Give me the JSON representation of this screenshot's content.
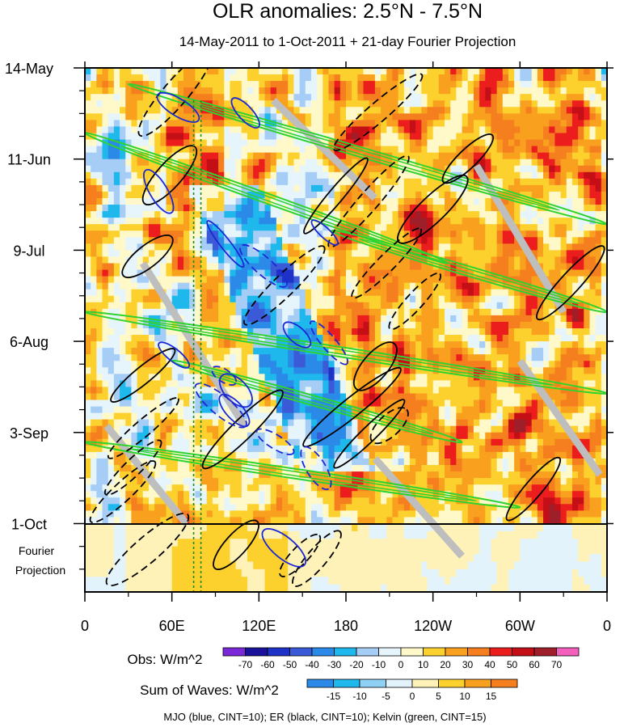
{
  "chart_data": {
    "type": "heatmap",
    "title": "OLR anomalies: 2.5°N - 7.5°N",
    "subtitle": "14-May-2011 to 1-Oct-2011 + 21-day Fourier Projection",
    "x_axis": {
      "labels": [
        "0",
        "60E",
        "120E",
        "180",
        "120W",
        "60W",
        "0"
      ],
      "longitude_deg_east": [
        0,
        60,
        120,
        180,
        240,
        300,
        360
      ],
      "range": [
        0,
        360
      ]
    },
    "y_axis": {
      "labels": [
        "14-May",
        "11-Jun",
        "9-Jul",
        "6-Aug",
        "3-Sep",
        "1-Oct"
      ],
      "day_index": [
        0,
        28,
        56,
        84,
        112,
        140
      ],
      "range_days": [
        0,
        161
      ],
      "reversed": true,
      "projection_label_lines": [
        "Fourier",
        "Projection"
      ],
      "projection_start_day": 140,
      "projection_length_days": 21
    },
    "obs_colorbar": {
      "label": "Obs: W/m^2",
      "levels": [
        -70,
        -60,
        -50,
        -40,
        -30,
        -20,
        -10,
        0,
        10,
        20,
        30,
        40,
        50,
        60,
        70
      ],
      "colors": [
        "#7a28d8",
        "#1a129a",
        "#1e32c8",
        "#3a5ad8",
        "#2b8ae8",
        "#1eb8ec",
        "#a6cdf5",
        "#e6f4fb",
        "#fff8c8",
        "#fcd12e",
        "#f9a01e",
        "#f57f1e",
        "#ec1d1d",
        "#c40f16",
        "#9e1f2a",
        "#f25fbc"
      ]
    },
    "waves_colorbar": {
      "label": "Sum of Waves: W/m^2",
      "levels": [
        -15,
        -10,
        -5,
        0,
        5,
        10,
        15
      ],
      "colors": [
        "#2b8ae8",
        "#1eb8ec",
        "#8fd0f5",
        "#e2f3fb",
        "#fff2b8",
        "#fcd12e",
        "#f9a01e",
        "#f57f1e"
      ]
    },
    "contours": [
      {
        "name": "MJO",
        "color": "blue",
        "cint": 10
      },
      {
        "name": "ER",
        "color": "black",
        "cint": 10
      },
      {
        "name": "Kelvin",
        "color": "green",
        "cint": 15
      }
    ],
    "footer": "MJO (blue, CINT=10); ER (black, CINT=10); Kelvin (green, CINT=15)",
    "missing_color": "#bebebe"
  }
}
